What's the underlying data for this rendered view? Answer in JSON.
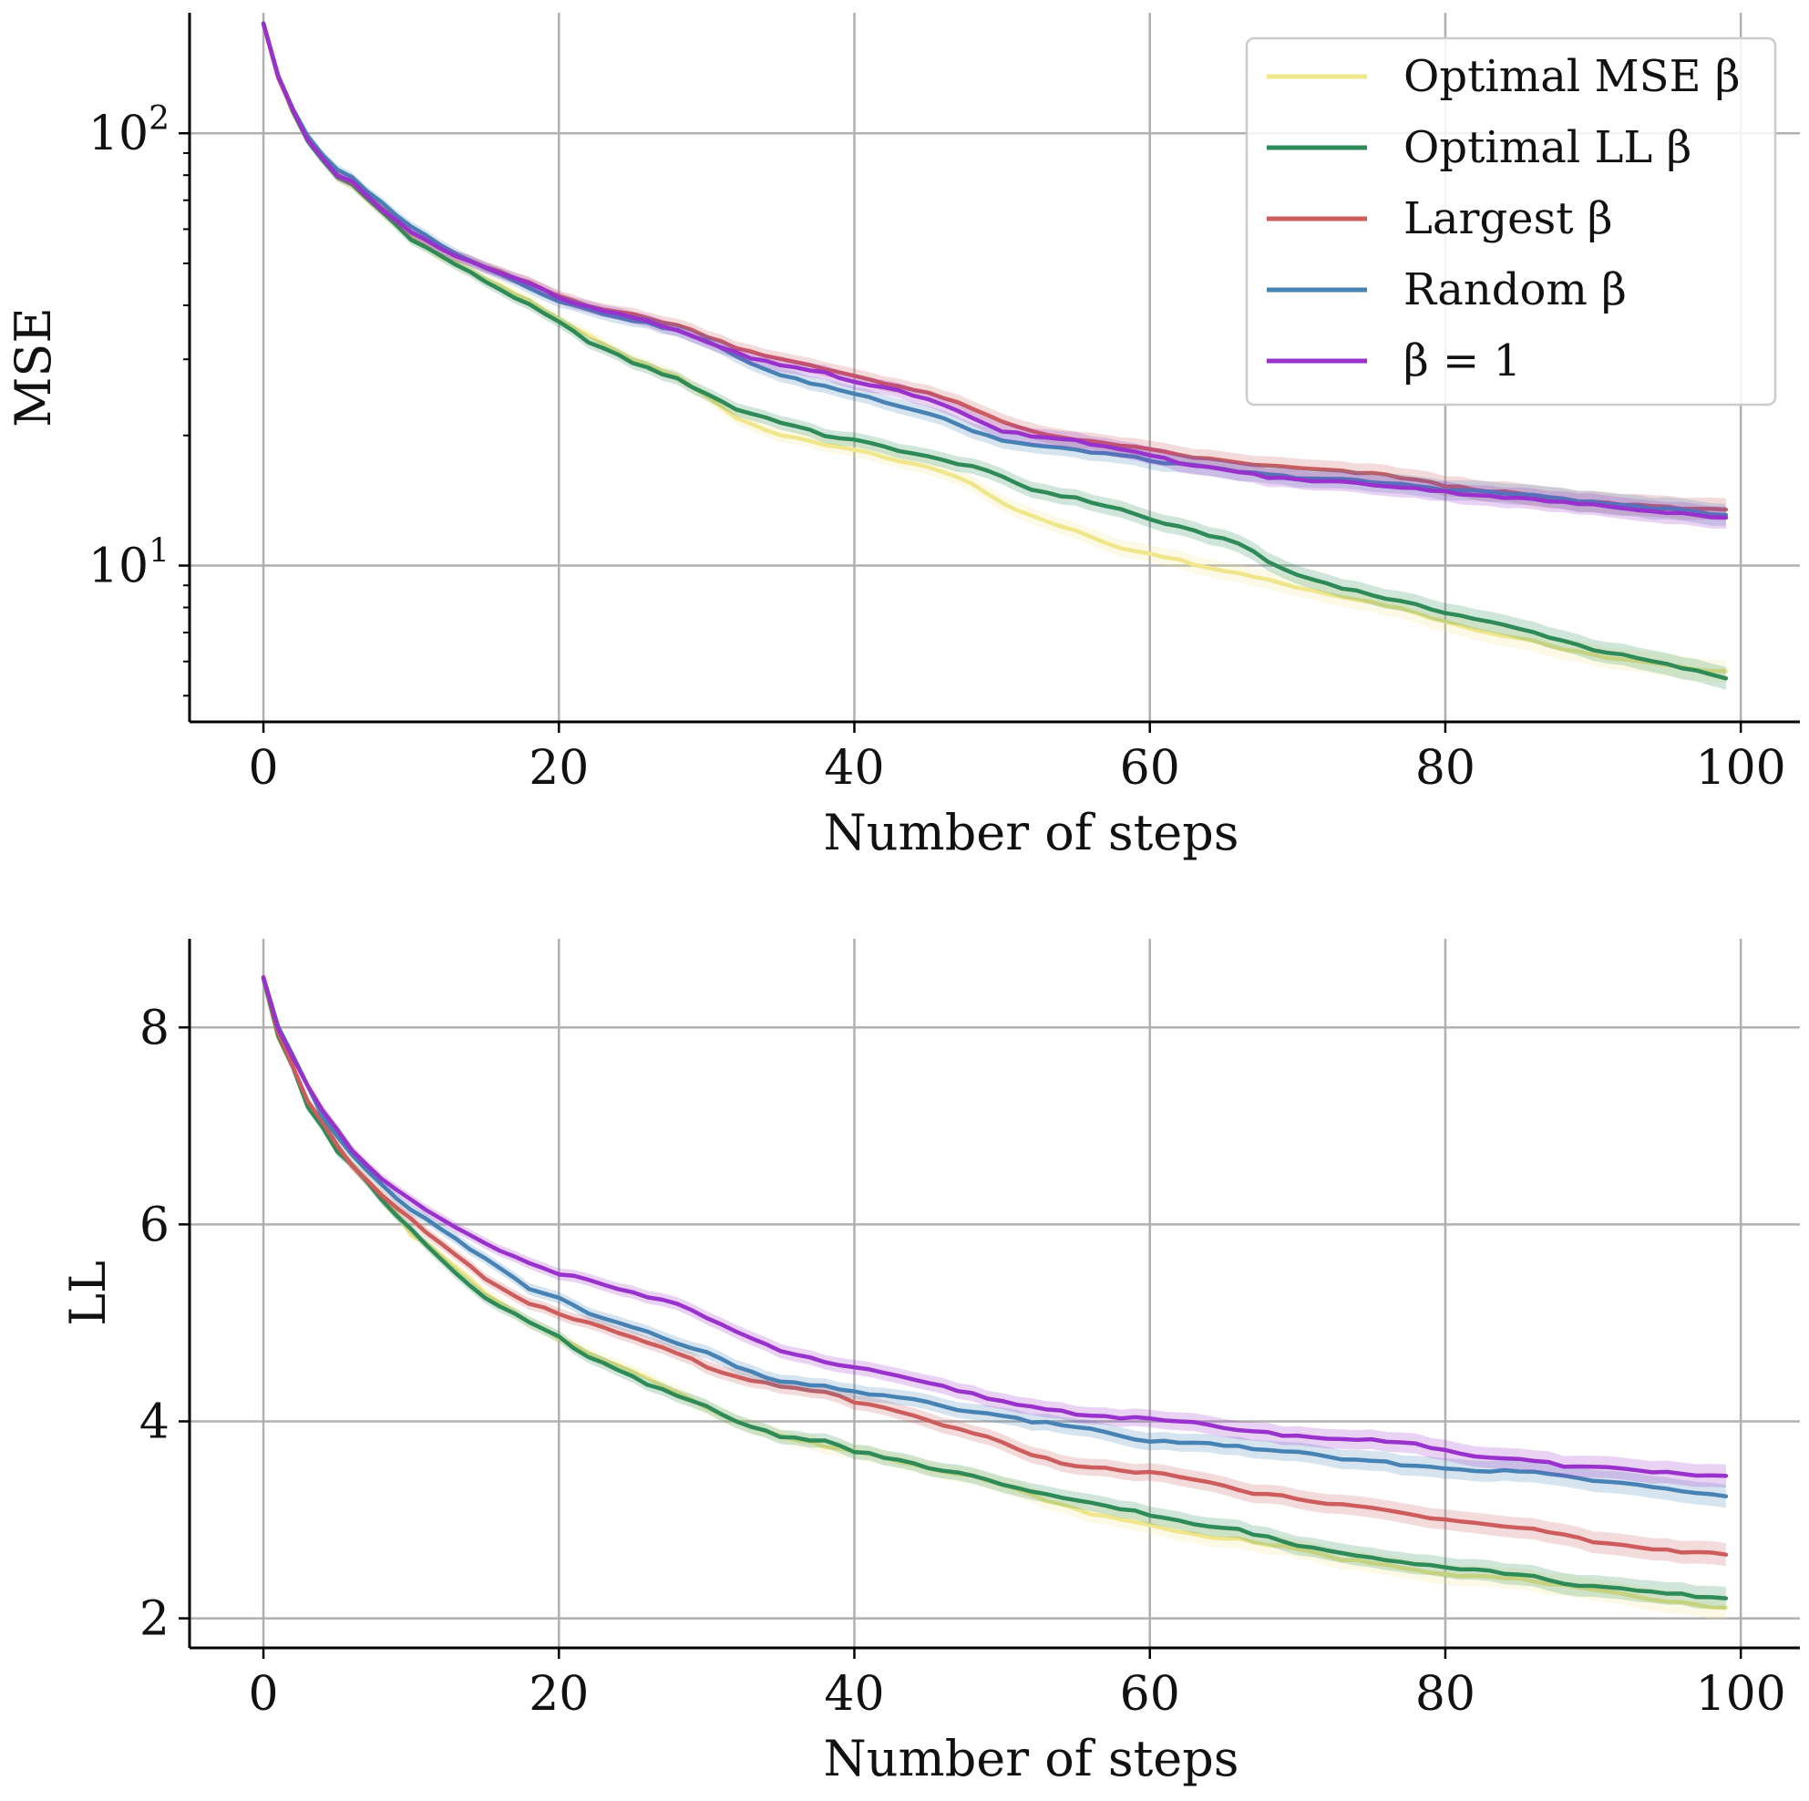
{
  "chart_data": [
    {
      "type": "line",
      "xlabel": "Number of steps",
      "ylabel": "MSE",
      "yscale": "log",
      "xlim": [
        -5,
        104
      ],
      "ylim": [
        4.35,
        190
      ],
      "xticks": [
        0,
        20,
        40,
        60,
        80,
        100
      ],
      "xtick_labels": [
        "0",
        "20",
        "40",
        "60",
        "80",
        "100"
      ],
      "yticks": [
        10,
        100
      ],
      "ytick_labels": [
        {
          "base": "10",
          "exp": "1"
        },
        {
          "base": "10",
          "exp": "2"
        }
      ],
      "grid": true,
      "legend": {
        "placement": "top-right"
      },
      "x_keys": [
        0,
        1,
        2,
        3,
        4,
        5,
        6,
        8,
        10,
        12,
        15,
        18,
        20,
        22,
        25,
        28,
        30,
        32,
        35,
        38,
        40,
        43,
        46,
        48,
        50,
        52,
        55,
        58,
        60,
        63,
        66,
        68,
        70,
        73,
        76,
        78,
        80,
        83,
        86,
        88,
        90,
        93,
        96,
        99
      ],
      "series": [
        {
          "name": "Optimal MSE β",
          "color": "#f0e68c",
          "y": [
            180,
            135,
            112,
            96,
            87,
            79,
            76,
            66,
            57,
            52,
            46,
            41,
            37,
            34,
            30,
            27.5,
            24.5,
            22,
            20,
            19,
            18.5,
            17.5,
            16.5,
            15.5,
            14,
            13,
            12,
            11,
            10.7,
            10.1,
            9.6,
            9.3,
            8.9,
            8.5,
            8.1,
            7.8,
            7.4,
            7.0,
            6.7,
            6.4,
            6.2,
            6.0,
            5.8,
            5.7
          ]
        },
        {
          "name": "Optimal LL β",
          "color": "#2e8b57",
          "y": [
            180,
            135,
            112,
            96,
            87,
            79,
            76,
            66,
            57,
            52,
            45.5,
            40,
            36.5,
            33,
            29.5,
            27,
            25,
            23,
            21.5,
            20,
            19.5,
            18.5,
            17.5,
            17,
            16,
            15,
            14.3,
            13.5,
            12.8,
            12,
            11.3,
            10.2,
            9.5,
            8.9,
            8.4,
            8.1,
            7.8,
            7.4,
            7.0,
            6.7,
            6.4,
            6.1,
            5.8,
            5.5
          ]
        },
        {
          "name": "Largest β",
          "color": "#cd5c5c",
          "y": [
            180,
            135,
            113,
            97,
            88,
            80,
            77,
            67,
            59,
            54,
            49,
            45,
            42,
            40,
            38,
            36,
            34,
            32,
            30,
            28.5,
            27.5,
            26,
            24.5,
            23,
            21.5,
            20.5,
            19.5,
            19,
            18.5,
            17.8,
            17.3,
            17,
            16.8,
            16.5,
            16.2,
            15.8,
            15.3,
            14.9,
            14.5,
            14.2,
            14,
            13.8,
            13.6,
            13.4
          ]
        },
        {
          "name": "Random β",
          "color": "#4682b4",
          "y": [
            180,
            136,
            114,
            98,
            89,
            82,
            79,
            69,
            61,
            55,
            49,
            44,
            41,
            39,
            37,
            35,
            33,
            30.5,
            27.5,
            26,
            25,
            23.5,
            22,
            20.5,
            19.5,
            19,
            18.5,
            18,
            17.5,
            17,
            16.5,
            16.2,
            16,
            15.8,
            15.5,
            15.3,
            15,
            14.8,
            14.5,
            14.3,
            14,
            13.7,
            13.4,
            13.1
          ]
        },
        {
          "name": "β = 1",
          "color": "#9932cc",
          "y": [
            180,
            135,
            113,
            97,
            88,
            80,
            77,
            67,
            59,
            54,
            49,
            45,
            41.5,
            39.5,
            37.5,
            35,
            33,
            31,
            29,
            28,
            26.5,
            25.5,
            23.5,
            22,
            20.5,
            20,
            19.5,
            18.5,
            18,
            17,
            16.5,
            16,
            15.8,
            15.6,
            15.3,
            15.1,
            14.8,
            14.5,
            14.2,
            14,
            13.8,
            13.5,
            13.2,
            12.9
          ]
        }
      ]
    },
    {
      "type": "line",
      "xlabel": "Number of steps",
      "ylabel": "LL",
      "yscale": "linear",
      "xlim": [
        -5,
        104
      ],
      "ylim": [
        1.7,
        8.9
      ],
      "xticks": [
        0,
        20,
        40,
        60,
        80,
        100
      ],
      "xtick_labels": [
        "0",
        "20",
        "40",
        "60",
        "80",
        "100"
      ],
      "yticks": [
        2,
        4,
        6,
        8
      ],
      "ytick_labels": [
        "2",
        "4",
        "6",
        "8"
      ],
      "grid": true,
      "x_keys": [
        0,
        1,
        2,
        3,
        4,
        5,
        6,
        8,
        10,
        12,
        15,
        18,
        20,
        22,
        25,
        28,
        30,
        32,
        35,
        38,
        40,
        43,
        46,
        48,
        50,
        52,
        55,
        58,
        60,
        63,
        66,
        68,
        70,
        73,
        76,
        78,
        80,
        83,
        86,
        88,
        90,
        93,
        96,
        99
      ],
      "series": [
        {
          "name": "Optimal MSE β",
          "color": "#f0e68c",
          "y": [
            8.5,
            7.9,
            7.6,
            7.2,
            7.0,
            6.8,
            6.6,
            6.3,
            5.9,
            5.7,
            5.3,
            5.0,
            4.85,
            4.7,
            4.5,
            4.3,
            4.15,
            4.0,
            3.85,
            3.75,
            3.7,
            3.6,
            3.5,
            3.45,
            3.35,
            3.25,
            3.1,
            3.0,
            2.95,
            2.85,
            2.8,
            2.75,
            2.7,
            2.6,
            2.55,
            2.5,
            2.45,
            2.42,
            2.38,
            2.33,
            2.28,
            2.22,
            2.16,
            2.1
          ]
        },
        {
          "name": "Optimal LL β",
          "color": "#2e8b57",
          "y": [
            8.5,
            7.9,
            7.6,
            7.2,
            7.0,
            6.75,
            6.6,
            6.25,
            5.95,
            5.65,
            5.25,
            5.0,
            4.85,
            4.65,
            4.45,
            4.25,
            4.15,
            4.0,
            3.85,
            3.8,
            3.7,
            3.6,
            3.5,
            3.45,
            3.35,
            3.28,
            3.2,
            3.12,
            3.05,
            2.95,
            2.9,
            2.82,
            2.74,
            2.67,
            2.6,
            2.56,
            2.52,
            2.48,
            2.42,
            2.36,
            2.32,
            2.28,
            2.24,
            2.2
          ]
        },
        {
          "name": "Largest β",
          "color": "#cd5c5c",
          "y": [
            8.5,
            7.95,
            7.6,
            7.25,
            7.05,
            6.8,
            6.6,
            6.3,
            6.05,
            5.8,
            5.45,
            5.2,
            5.1,
            5.0,
            4.85,
            4.7,
            4.55,
            4.45,
            4.35,
            4.3,
            4.2,
            4.1,
            3.95,
            3.88,
            3.8,
            3.65,
            3.55,
            3.5,
            3.48,
            3.42,
            3.3,
            3.25,
            3.22,
            3.15,
            3.1,
            3.05,
            3.0,
            2.95,
            2.9,
            2.85,
            2.78,
            2.72,
            2.68,
            2.65
          ]
        },
        {
          "name": "Random β",
          "color": "#4682b4",
          "y": [
            8.5,
            8.0,
            7.7,
            7.4,
            7.1,
            6.9,
            6.7,
            6.4,
            6.15,
            5.95,
            5.65,
            5.35,
            5.25,
            5.1,
            4.95,
            4.8,
            4.7,
            4.55,
            4.4,
            4.35,
            4.3,
            4.25,
            4.15,
            4.1,
            4.05,
            4.0,
            3.95,
            3.85,
            3.8,
            3.78,
            3.75,
            3.7,
            3.68,
            3.62,
            3.58,
            3.55,
            3.52,
            3.5,
            3.48,
            3.45,
            3.4,
            3.35,
            3.3,
            3.25
          ]
        },
        {
          "name": "β = 1",
          "color": "#9932cc",
          "y": [
            8.5,
            8.0,
            7.7,
            7.4,
            7.15,
            6.95,
            6.75,
            6.45,
            6.25,
            6.05,
            5.8,
            5.6,
            5.5,
            5.45,
            5.3,
            5.2,
            5.05,
            4.9,
            4.72,
            4.6,
            4.55,
            4.45,
            4.35,
            4.28,
            4.2,
            4.15,
            4.08,
            4.04,
            4.02,
            3.98,
            3.92,
            3.88,
            3.85,
            3.82,
            3.8,
            3.78,
            3.7,
            3.62,
            3.6,
            3.55,
            3.55,
            3.5,
            3.47,
            3.44
          ]
        }
      ]
    }
  ]
}
